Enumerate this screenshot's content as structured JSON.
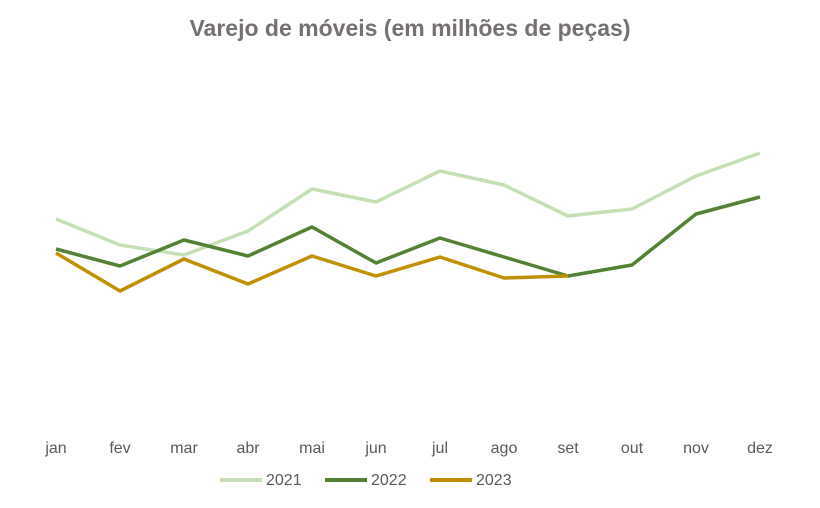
{
  "chart_data": {
    "type": "line",
    "title": "Varejo de móveis (em milhões de peças)",
    "categories": [
      "jan",
      "fev",
      "mar",
      "abr",
      "mai",
      "jun",
      "jul",
      "ago",
      "set",
      "out",
      "nov",
      "dez"
    ],
    "series": [
      {
        "name": "2021",
        "color": "#c5e0b4",
        "values": [
          211,
          185,
          175,
          199,
          241,
          228,
          259,
          245,
          214,
          221,
          254,
          277
        ]
      },
      {
        "name": "2022",
        "color": "#548235",
        "values": [
          181,
          164,
          190,
          174,
          203,
          167,
          192,
          173,
          154,
          165,
          216,
          233
        ]
      },
      {
        "name": "2023",
        "color": "#bf9000",
        "values": [
          177,
          139,
          171,
          146,
          174,
          154,
          173,
          152,
          154,
          null,
          null,
          null
        ]
      }
    ],
    "ylim": [
      0,
      350
    ],
    "legend": "bottom"
  }
}
